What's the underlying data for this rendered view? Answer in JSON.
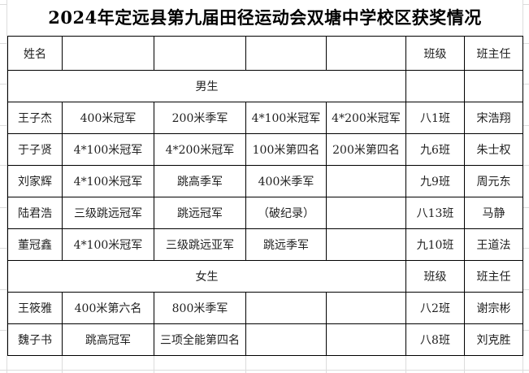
{
  "title": "2024年定远县第九届田径运动会双塘中学校区获奖情况",
  "header": {
    "name": "姓名",
    "class": "班级",
    "teacher": "班主任"
  },
  "boys": {
    "label": "男生",
    "rows": [
      {
        "name": "王子杰",
        "awards": [
          "400米冠军",
          "200米季军",
          "4*100米冠军",
          "4*200米冠军"
        ],
        "class": "八1班",
        "teacher": "宋浩翔"
      },
      {
        "name": "于子贤",
        "awards": [
          "4*100米冠军",
          "4*200米冠军",
          "100米第四名",
          "200米第四名"
        ],
        "class": "九6班",
        "teacher": "朱士权"
      },
      {
        "name": "刘家辉",
        "awards": [
          "4*100米冠军",
          "跳高季军",
          "400米季军",
          ""
        ],
        "class": "九9班",
        "teacher": "周元东"
      },
      {
        "name": "陆君浩",
        "awards": [
          "三级跳远冠军",
          "跳远冠军",
          "（破纪录）",
          ""
        ],
        "class": "八13班",
        "teacher": "马静"
      },
      {
        "name": "董冠鑫",
        "awards": [
          "4*100米冠军",
          "三级跳远亚军",
          "跳远季军",
          ""
        ],
        "class": "九10班",
        "teacher": "王道法"
      }
    ]
  },
  "girls": {
    "label": "女生",
    "class_header": "班级",
    "teacher_header": "班主任",
    "rows": [
      {
        "name": "王筱雅",
        "awards": [
          "400米第六名",
          "800米季军",
          "",
          ""
        ],
        "class": "八2班",
        "teacher": "谢宗彬"
      },
      {
        "name": "魏子书",
        "awards": [
          "跳高冠军",
          "三项全能第四名",
          "",
          ""
        ],
        "class": "八8班",
        "teacher": "刘克胜"
      }
    ]
  }
}
